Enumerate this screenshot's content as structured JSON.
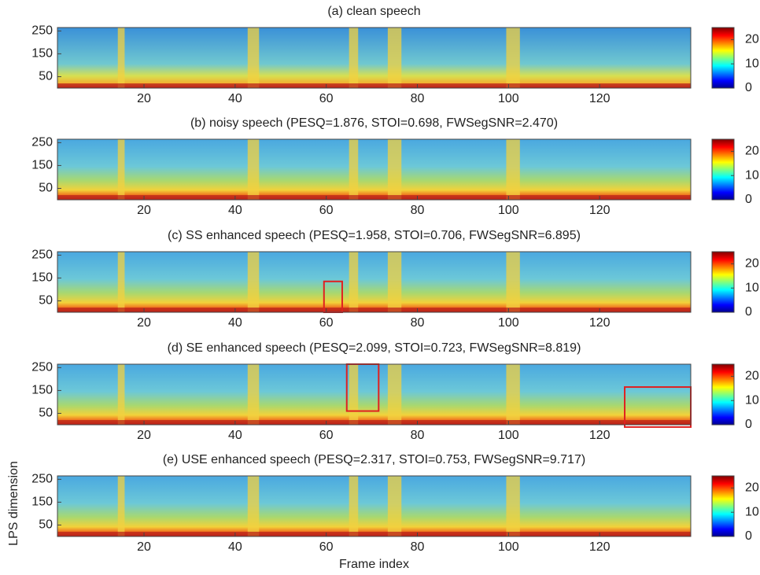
{
  "chart_data": [
    {
      "type": "heatmap",
      "title": "(a) clean speech",
      "xlim": [
        1,
        140
      ],
      "xticks": [
        20,
        40,
        60,
        80,
        100,
        120
      ],
      "ylim": [
        0,
        265
      ],
      "yticks": [
        50,
        150,
        250
      ],
      "clim": [
        0,
        25
      ],
      "cticks": [
        0,
        10,
        20
      ]
    },
    {
      "type": "heatmap",
      "title": "(b) noisy speech (PESQ=1.876, STOI=0.698, FWSegSNR=2.470)",
      "xlim": [
        1,
        140
      ],
      "xticks": [
        20,
        40,
        60,
        80,
        100,
        120
      ],
      "ylim": [
        0,
        265
      ],
      "yticks": [
        50,
        150,
        250
      ],
      "clim": [
        0,
        25
      ],
      "cticks": [
        0,
        10,
        20
      ]
    },
    {
      "type": "heatmap",
      "title": "(c) SS enhanced speech (PESQ=1.958, STOI=0.706, FWSegSNR=6.895)",
      "xlim": [
        1,
        140
      ],
      "xticks": [
        20,
        40,
        60,
        80,
        100,
        120
      ],
      "ylim": [
        0,
        265
      ],
      "yticks": [
        50,
        150,
        250
      ],
      "clim": [
        0,
        25
      ],
      "cticks": [
        0,
        10,
        20
      ]
    },
    {
      "type": "heatmap",
      "title": "(d) SE enhanced speech (PESQ=2.099, STOI=0.723, FWSegSNR=8.819)",
      "xlim": [
        1,
        140
      ],
      "xticks": [
        20,
        40,
        60,
        80,
        100,
        120
      ],
      "ylim": [
        0,
        265
      ],
      "yticks": [
        50,
        150,
        250
      ],
      "clim": [
        0,
        25
      ],
      "cticks": [
        0,
        10,
        20
      ]
    },
    {
      "type": "heatmap",
      "title": "(e) USE enhanced speech (PESQ=2.317, STOI=0.753, FWSegSNR=9.717)",
      "xlim": [
        1,
        140
      ],
      "xticks": [
        20,
        40,
        60,
        80,
        100,
        120
      ],
      "ylim": [
        0,
        265
      ],
      "yticks": [
        50,
        150,
        250
      ],
      "clim": [
        0,
        25
      ],
      "cticks": [
        0,
        10,
        20
      ],
      "xlabel": "Frame index",
      "ylabel": "LPS dimension"
    }
  ]
}
